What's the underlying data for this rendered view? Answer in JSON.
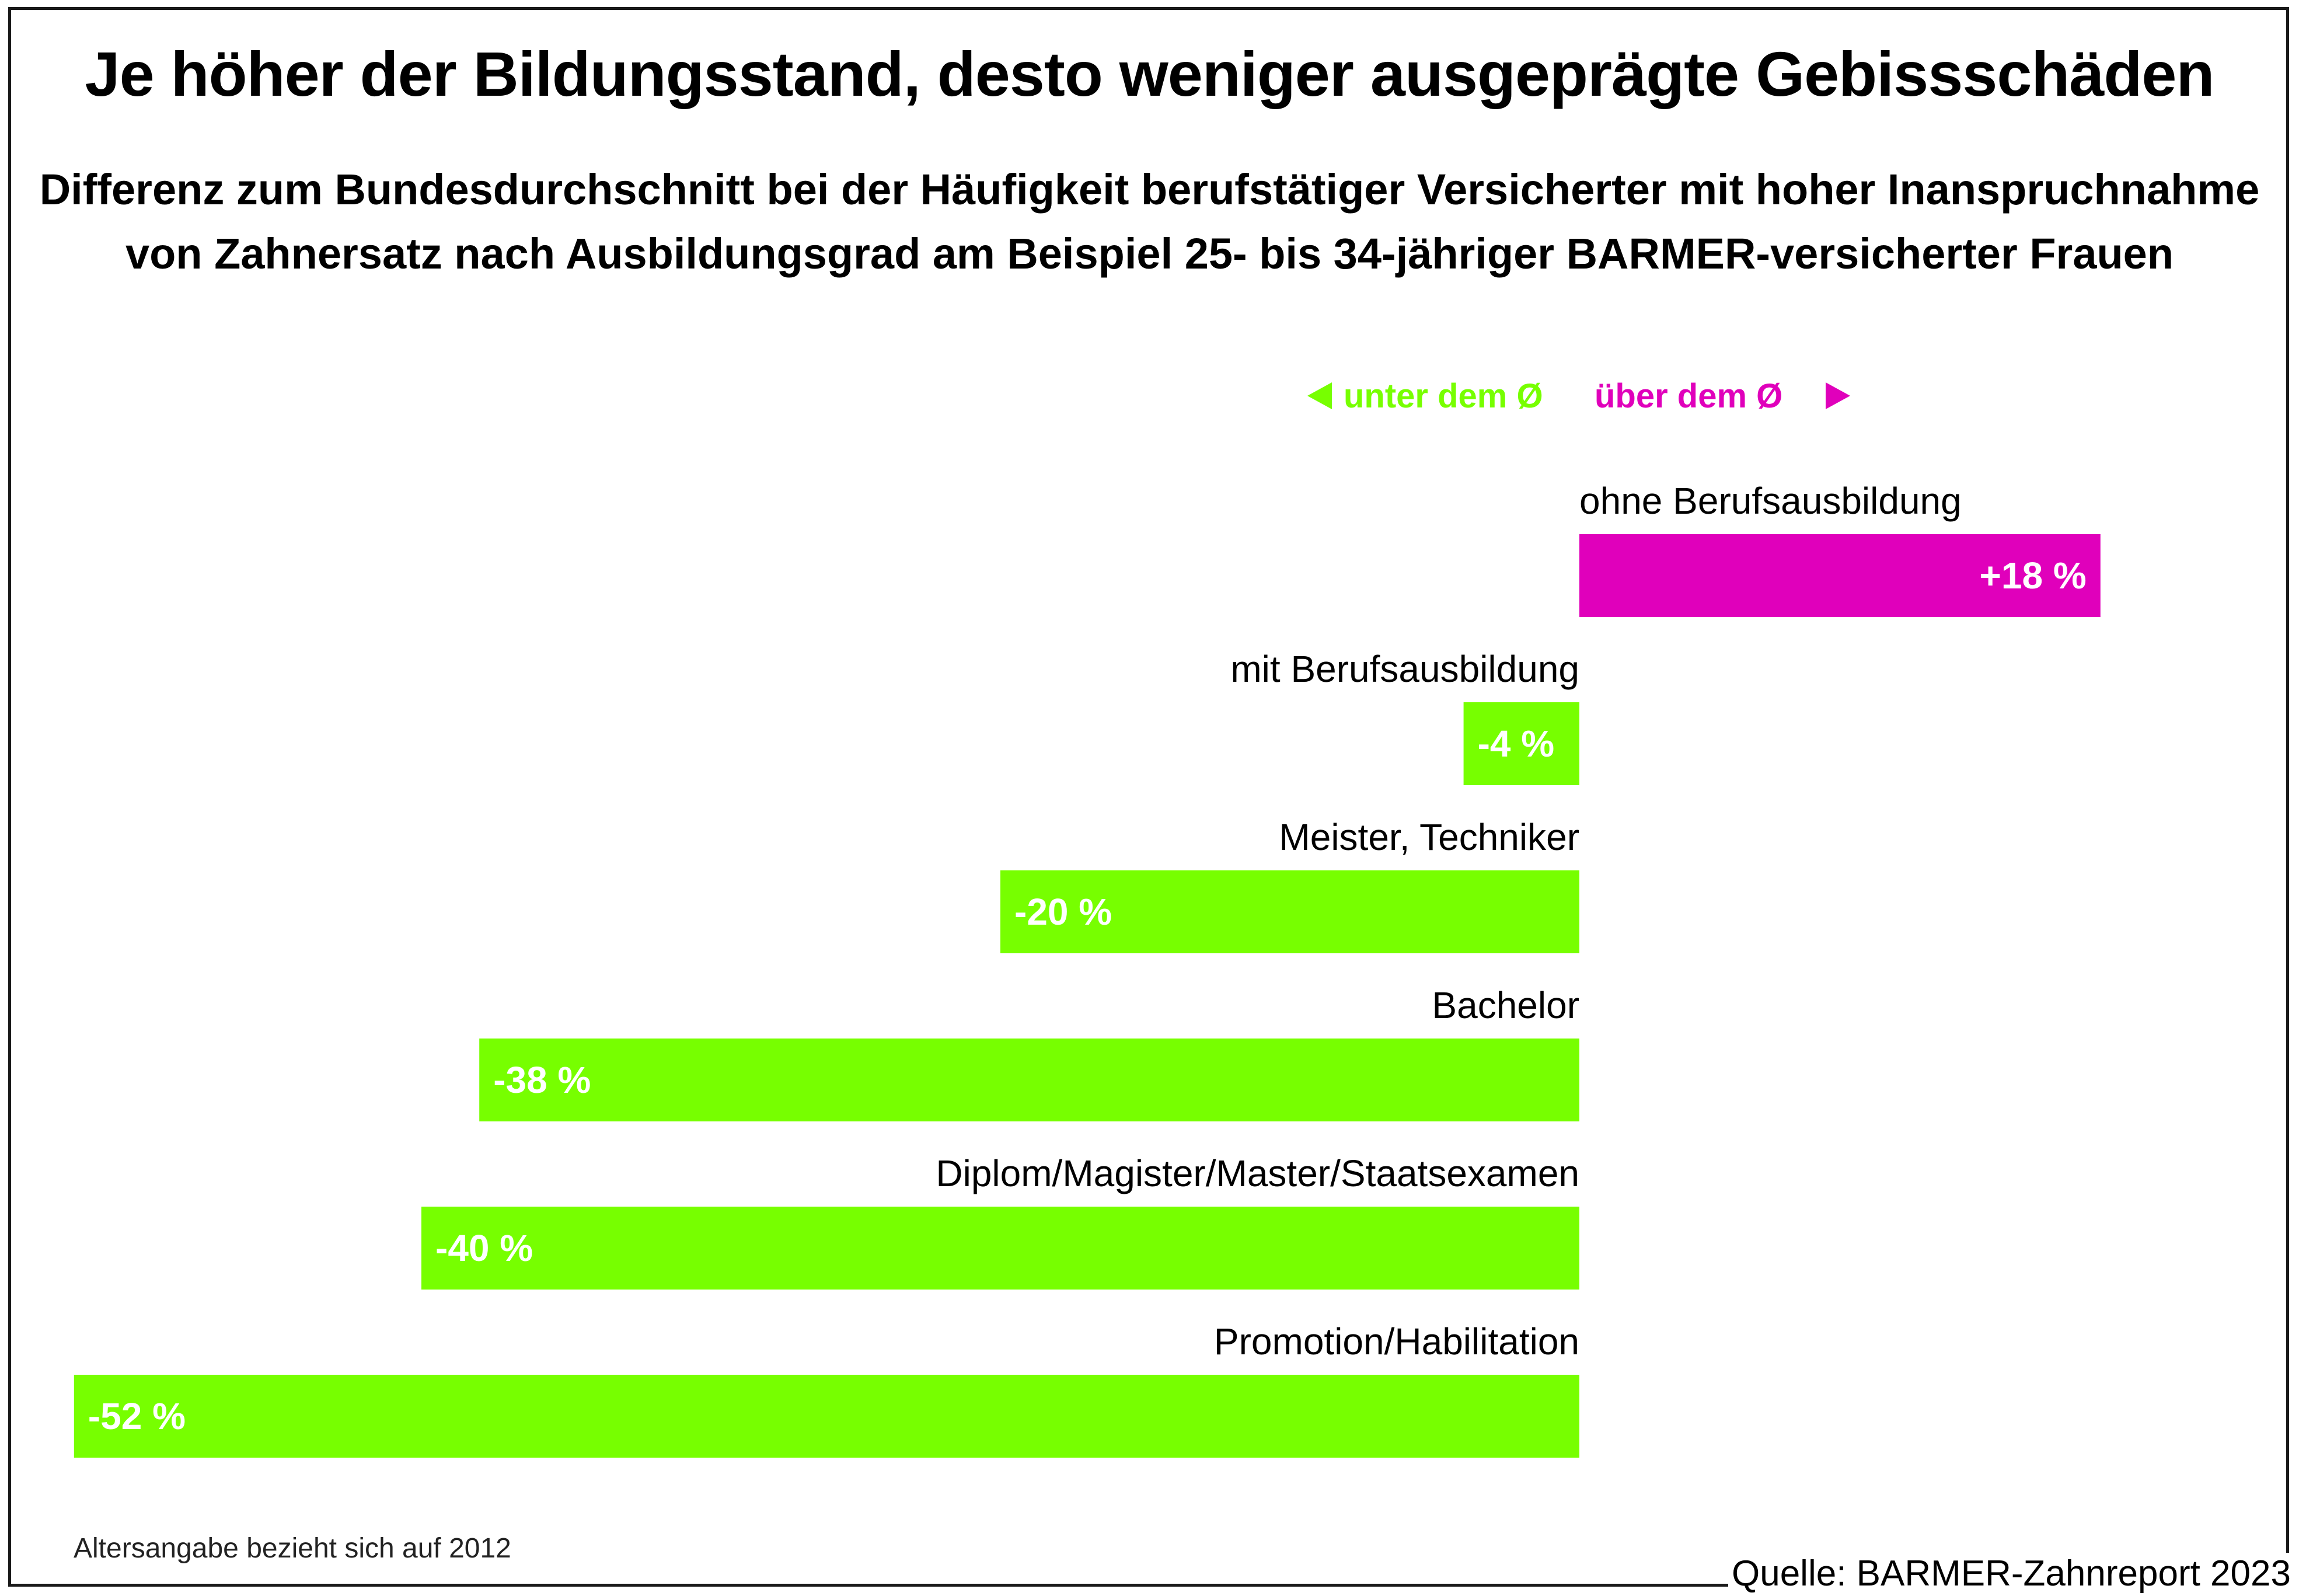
{
  "title": "Je höher der Bildungsstand, desto weniger ausgeprägte Gebissschäden",
  "subtitle_line1": "Differenz zum Bundesdurchschnitt bei der Häufigkeit berufstätiger Versicherter mit hoher Inanspruchnahme",
  "subtitle_line2": "von Zahnersatz nach Ausbildungsgrad am Beispiel 25- bis 34-jähriger BARMER-versicherter Frauen",
  "legend": {
    "below_label": "unter dem Ø",
    "above_label": "über dem Ø",
    "below_color": "#77ff00",
    "above_color": "#e000bb"
  },
  "colors": {
    "positive": "#e000bb",
    "negative": "#77ff00",
    "label_text": "#ffffff"
  },
  "chart_data": {
    "type": "bar",
    "orientation": "horizontal",
    "categories": [
      "ohne Berufsausbildung",
      "mit Berufsausbildung",
      "Meister, Techniker",
      "Bachelor",
      "Diplom/Magister/Master/Staatsexamen",
      "Promotion/Habilitation"
    ],
    "values": [
      18,
      -4,
      -20,
      -38,
      -40,
      -52
    ],
    "value_labels": [
      "+18 %",
      "-4 %",
      "-20 %",
      "-38 %",
      "-40 %",
      "-52 %"
    ],
    "unit": "%",
    "xlim": [
      -52,
      18
    ],
    "title": "Je höher der Bildungsstand, desto weniger ausgeprägte Gebissschäden",
    "xlabel": "",
    "ylabel": "",
    "grid": false
  },
  "footnote": "Altersangabe bezieht sich auf 2012",
  "source": "Quelle: BARMER-Zahnreport 2023"
}
